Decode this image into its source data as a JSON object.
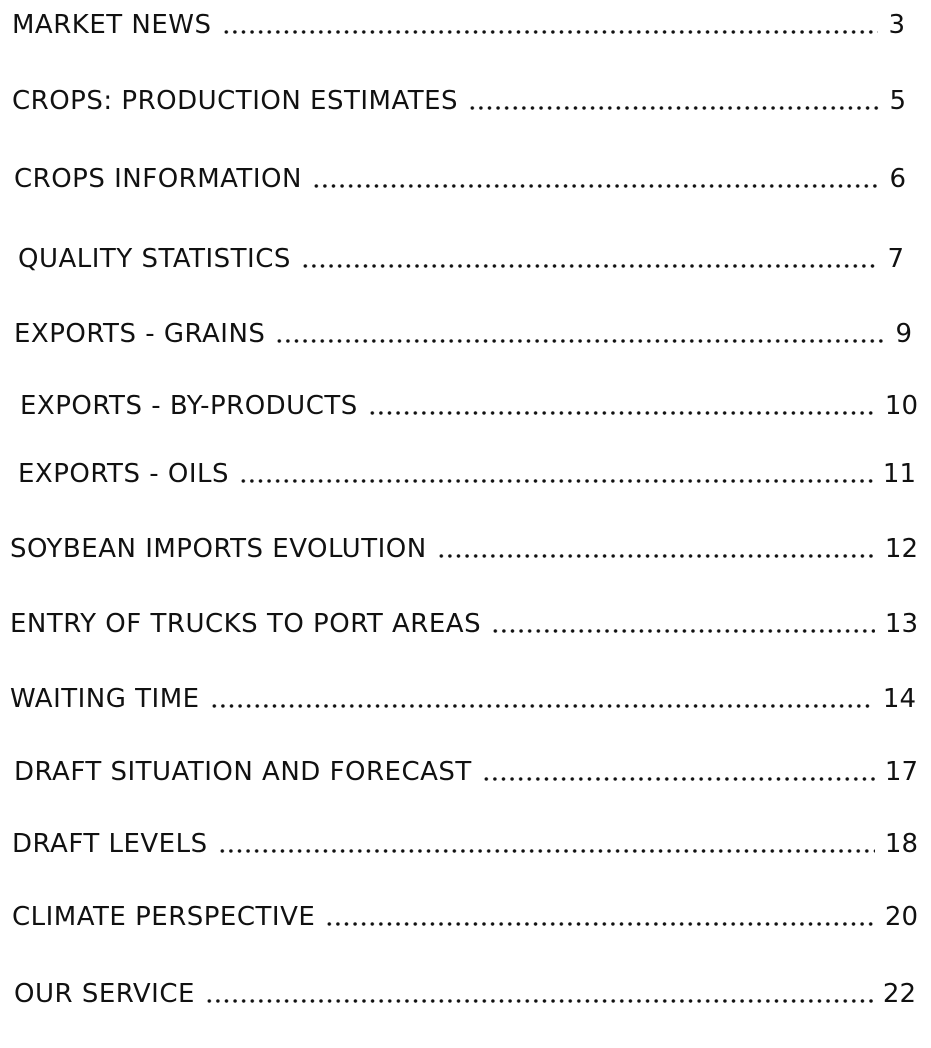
{
  "toc": {
    "entries": [
      {
        "title": "MARKET NEWS",
        "page": 3
      },
      {
        "title": "CROPS: PRODUCTION ESTIMATES",
        "page": 5
      },
      {
        "title": "CROPS INFORMATION",
        "page": 6
      },
      {
        "title": "QUALITY STATISTICS",
        "page": 7
      },
      {
        "title": "EXPORTS - GRAINS",
        "page": 9
      },
      {
        "title": "EXPORTS - BY-PRODUCTS",
        "page": 10
      },
      {
        "title": "EXPORTS - OILS",
        "page": 11
      },
      {
        "title": "SOYBEAN IMPORTS EVOLUTION",
        "page": 12
      },
      {
        "title": "ENTRY OF TRUCKS TO PORT AREAS",
        "page": 13
      },
      {
        "title": "WAITING TIME",
        "page": 14
      },
      {
        "title": "DRAFT SITUATION AND FORECAST",
        "page": 17
      },
      {
        "title": "DRAFT LEVELS",
        "page": 18
      },
      {
        "title": "CLIMATE PERSPECTIVE",
        "page": 20
      },
      {
        "title": "OUR SERVICE",
        "page": 22
      }
    ]
  }
}
